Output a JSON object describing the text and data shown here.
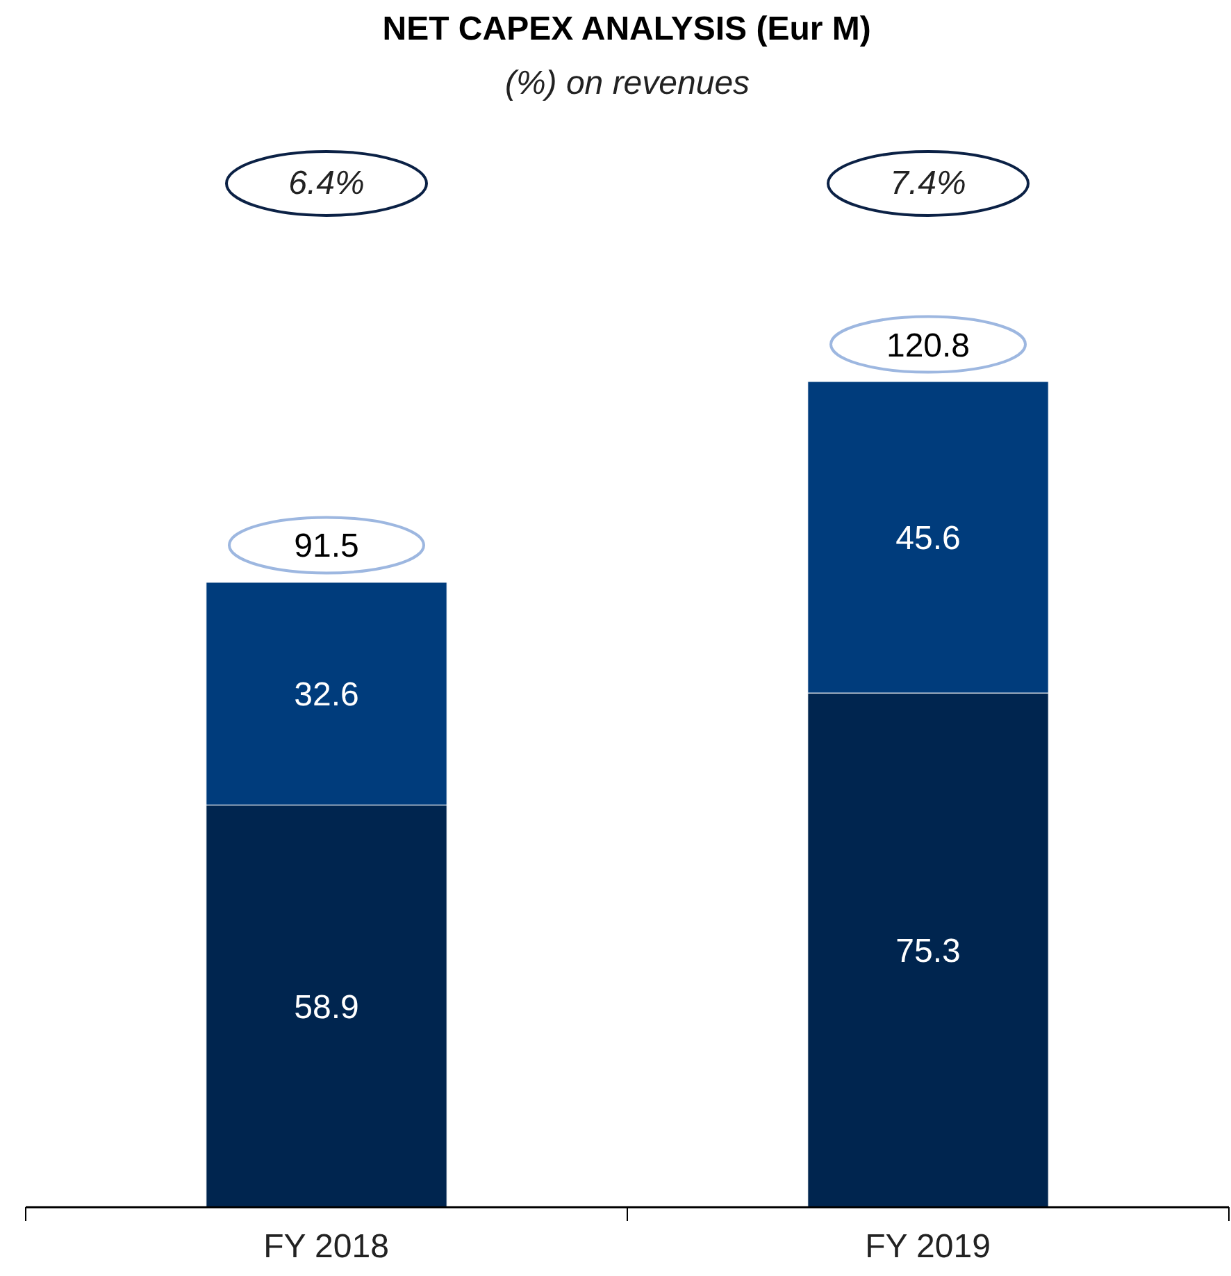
{
  "chart_data": {
    "type": "bar",
    "title": "NET CAPEX ANALYSIS (Eur M)",
    "subtitle": "(%) on revenues",
    "categories": [
      "FY 2018",
      "FY 2019"
    ],
    "stacked": true,
    "data_labels": true,
    "series": [
      {
        "color": "#00254f",
        "values": [
          58.9,
          75.3
        ]
      },
      {
        "color": "#003c7c",
        "values": [
          32.6,
          45.6
        ]
      }
    ],
    "totals": [
      "91.5",
      "120.8"
    ],
    "annotations": [
      "6.4%",
      "7.4%"
    ]
  }
}
